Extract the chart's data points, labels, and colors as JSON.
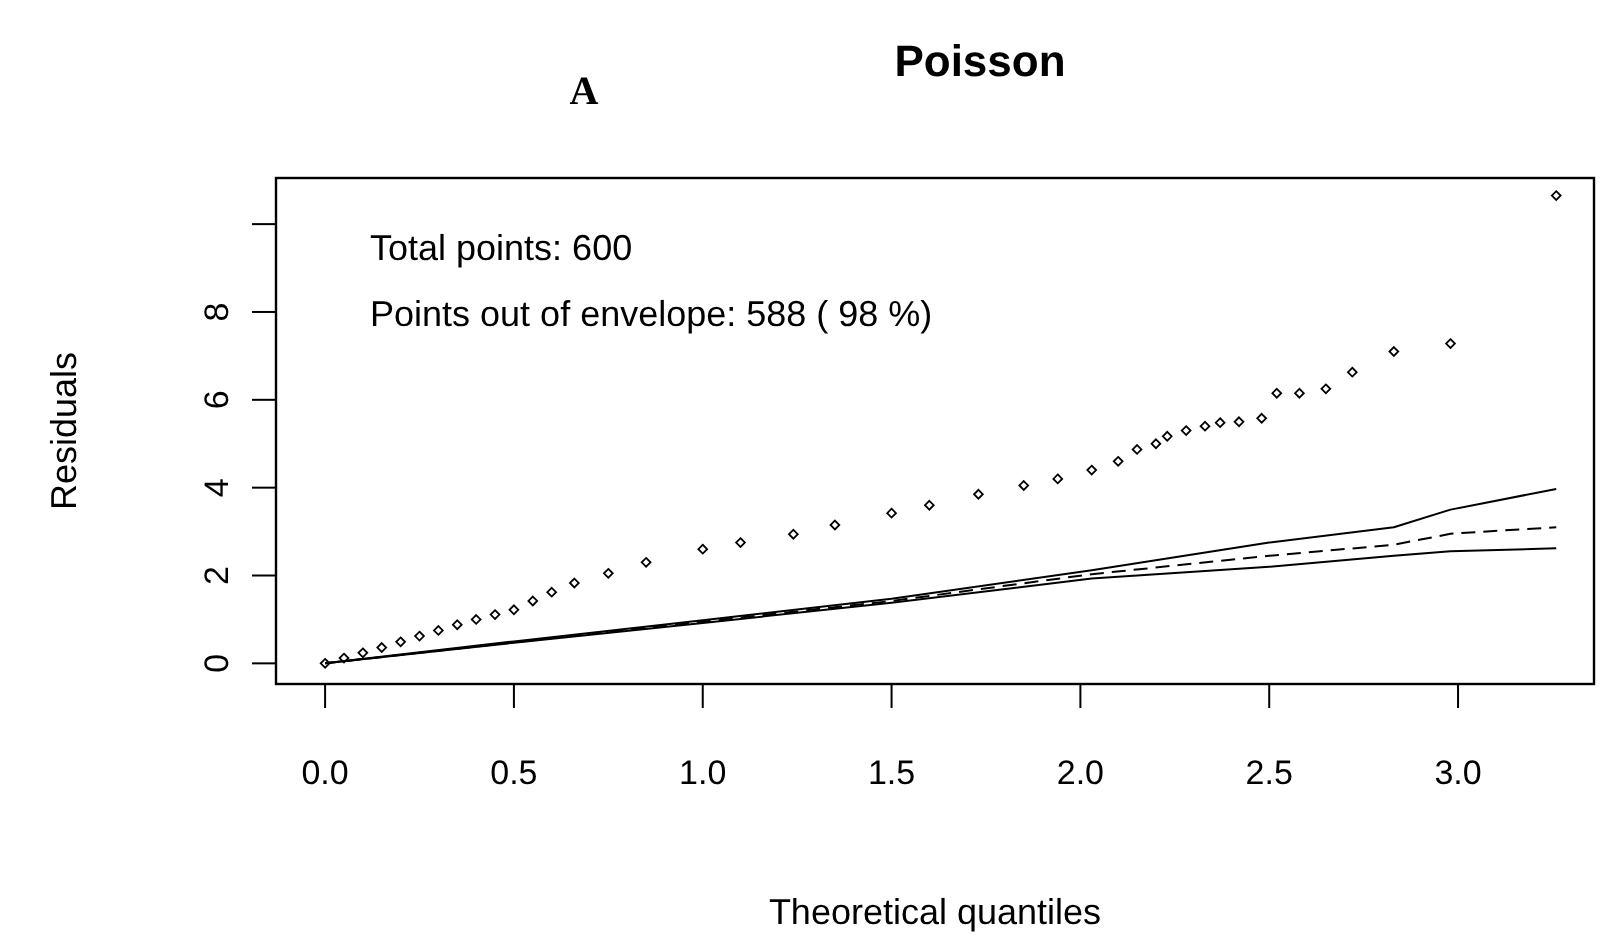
{
  "chart_data": {
    "type": "scatter",
    "title": "Poisson",
    "xlabel": "Theoretical quantiles",
    "ylabel": "Residuals",
    "annotations": [
      "A",
      "Total points: 600",
      "Points out of envelope: 588 ( 98 %)"
    ],
    "xlim": [
      -0.13,
      3.36
    ],
    "ylim": [
      -0.47,
      11.05
    ],
    "xticks": [
      {
        "value": 0,
        "label": "0.0"
      },
      {
        "value": 0.5,
        "label": "0.5"
      },
      {
        "value": 1,
        "label": "1.0"
      },
      {
        "value": 1.5,
        "label": "1.5"
      },
      {
        "value": 2,
        "label": "2.0"
      },
      {
        "value": 2.5,
        "label": "2.5"
      },
      {
        "value": 3,
        "label": "3.0"
      }
    ],
    "yticks": [
      0,
      2,
      4,
      6,
      8,
      {
        "value": 10,
        "label": null
      }
    ],
    "grid": false,
    "series": [
      {
        "marker": "diamond",
        "color": "#000000",
        "x": [
          0,
          0.05,
          0.1,
          0.15,
          0.2,
          0.25,
          0.3,
          0.35,
          0.4,
          0.45,
          0.5,
          0.55,
          0.6,
          0.66,
          0.75,
          0.85,
          1.0,
          1.1,
          1.24,
          1.35,
          1.5,
          1.6,
          1.73,
          1.85,
          1.94,
          2.03,
          2.1,
          2.15,
          2.2,
          2.23,
          2.28,
          2.33,
          2.37,
          2.42,
          2.48,
          2.52,
          2.58,
          2.65,
          2.72,
          2.83,
          2.98,
          3.26
        ],
        "values": [
          0,
          0.12,
          0.24,
          0.36,
          0.49,
          0.62,
          0.75,
          0.88,
          1.0,
          1.11,
          1.22,
          1.42,
          1.62,
          1.83,
          2.05,
          2.3,
          2.6,
          2.75,
          2.94,
          3.15,
          3.42,
          3.6,
          3.85,
          4.05,
          4.2,
          4.4,
          4.6,
          4.87,
          5.0,
          5.17,
          5.3,
          5.4,
          5.48,
          5.5,
          5.58,
          6.15,
          6.15,
          6.25,
          6.63,
          7.1,
          7.28,
          10.65
        ]
      },
      {
        "type": "line",
        "line_style": "solid",
        "color": "#000000",
        "x": [
          0,
          0.5,
          1.0,
          1.5,
          2.03,
          2.5,
          2.83,
          2.98,
          3.26
        ],
        "values": [
          0,
          0.47,
          0.92,
          1.38,
          1.93,
          2.2,
          2.45,
          2.55,
          2.62
        ]
      },
      {
        "type": "line",
        "line_style": "dashed",
        "color": "#000000",
        "x": [
          0,
          0.5,
          1.0,
          1.5,
          2.03,
          2.5,
          2.83,
          2.98,
          3.26
        ],
        "values": [
          0,
          0.48,
          0.95,
          1.42,
          2.03,
          2.45,
          2.7,
          2.95,
          3.1
        ]
      },
      {
        "type": "line",
        "line_style": "solid",
        "color": "#000000",
        "x": [
          0,
          0.5,
          1.0,
          1.5,
          2.03,
          2.5,
          2.83,
          2.98,
          3.26
        ],
        "values": [
          0,
          0.5,
          0.98,
          1.47,
          2.12,
          2.75,
          3.1,
          3.5,
          3.97
        ]
      }
    ]
  }
}
